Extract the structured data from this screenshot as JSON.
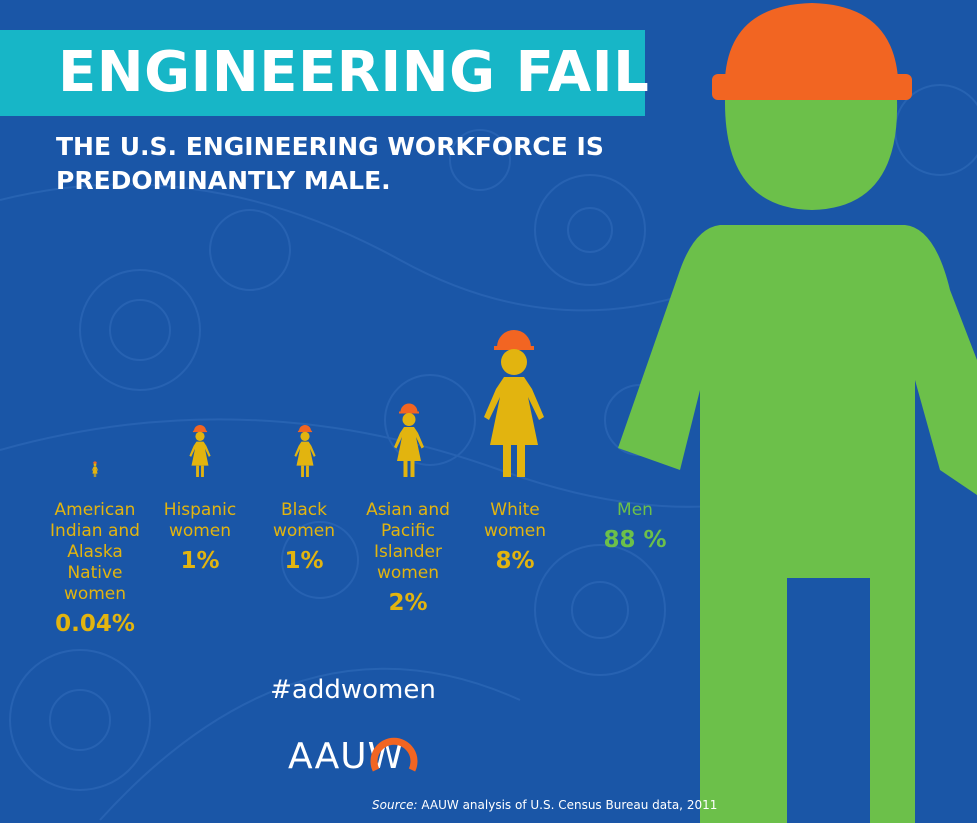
{
  "title": "ENGINEERING FAIL",
  "subtitle": "THE U.S. ENGINEERING WORKFORCE IS PREDOMINANTLY MALE.",
  "hashtag": "#addwomen",
  "logo": "AAUW",
  "source_label": "Source:",
  "source_text": "AAUW analysis of U.S. Census Bureau data, 2011",
  "colors": {
    "background": "#1a56a7",
    "title_bar": "#17b6c7",
    "women": "#e2b40f",
    "men": "#6cc04a",
    "helmet": "#f26522"
  },
  "chart_data": {
    "type": "pictograph",
    "unit": "%",
    "categories": [
      {
        "label": "American Indian and Alaska Native women",
        "lines": [
          "American",
          "Indian and",
          "Alaska",
          "Native",
          "women"
        ],
        "value": 0.04,
        "display": "0.04%",
        "group": "women"
      },
      {
        "label": "Hispanic women",
        "lines": [
          "Hispanic",
          "women"
        ],
        "value": 1,
        "display": "1%",
        "group": "women"
      },
      {
        "label": "Black women",
        "lines": [
          "Black",
          "women"
        ],
        "value": 1,
        "display": "1%",
        "group": "women"
      },
      {
        "label": "Asian and Pacific Islander women",
        "lines": [
          "Asian and",
          "Pacific",
          "Islander",
          "women"
        ],
        "value": 2,
        "display": "2%",
        "group": "women"
      },
      {
        "label": "White women",
        "lines": [
          "White",
          "women"
        ],
        "value": 8,
        "display": "8%",
        "group": "women"
      },
      {
        "label": "Men",
        "lines": [
          "Men"
        ],
        "value": 88,
        "display": "88 %",
        "group": "men"
      }
    ]
  }
}
